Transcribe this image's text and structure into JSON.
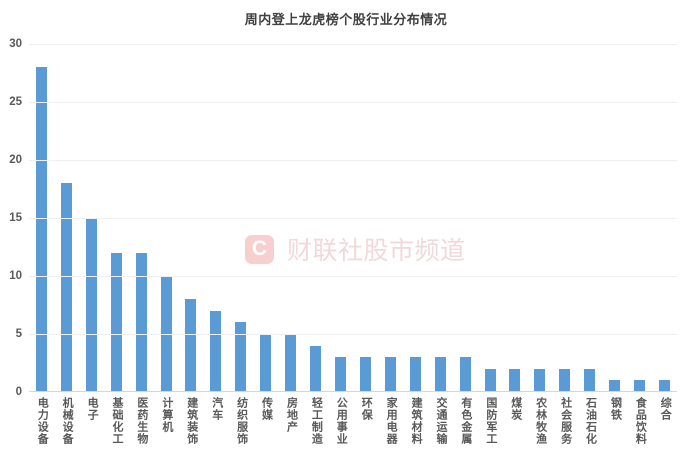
{
  "chart_data": {
    "type": "bar",
    "title": "周内登上龙虎榜个股行业分布情况",
    "categories": [
      "电力设备",
      "机械设备",
      "电子",
      "基础化工",
      "医药生物",
      "计算机",
      "建筑装饰",
      "汽车",
      "纺织服饰",
      "传媒",
      "房地产",
      "轻工制造",
      "公用事业",
      "环保",
      "家用电器",
      "建筑材料",
      "交通运输",
      "有色金属",
      "国防军工",
      "煤炭",
      "农林牧渔",
      "社会服务",
      "石油石化",
      "钢铁",
      "食品饮料",
      "综合"
    ],
    "values": [
      28,
      18,
      15,
      12,
      12,
      10,
      8,
      7,
      6,
      5,
      5,
      4,
      3,
      3,
      3,
      3,
      3,
      3,
      2,
      2,
      2,
      2,
      2,
      1,
      1,
      1
    ],
    "xlabel": "",
    "ylabel": "",
    "ylim": [
      0,
      30
    ],
    "yticks": [
      0,
      5,
      10,
      15,
      20,
      25,
      30
    ],
    "grid": true,
    "legend_position": "none",
    "bar_color": "#5B9BD5",
    "axis_label_color": "#595959",
    "title_color": "#404040"
  },
  "watermark": {
    "logo_letter": "C",
    "text": "财联社股市频道",
    "logo_color": "#F8CFCF",
    "text_color": "#F2D9D9"
  }
}
